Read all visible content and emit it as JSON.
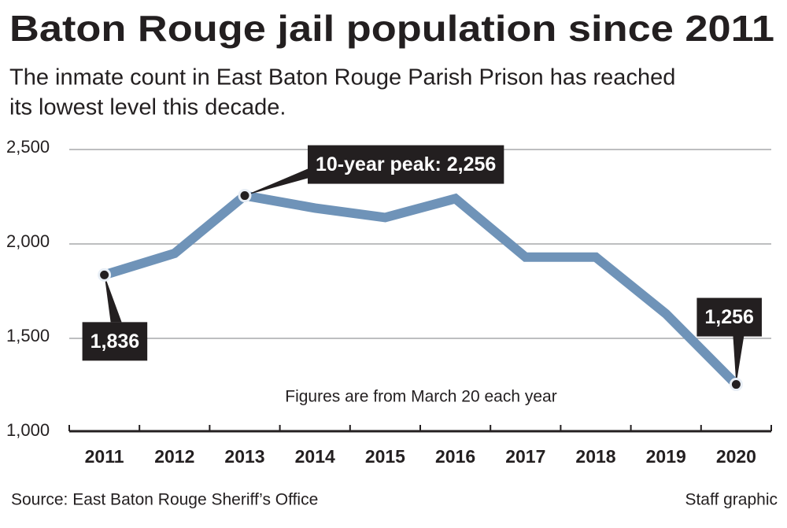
{
  "chart_data": {
    "type": "line",
    "title": "Baton Rouge jail population since 2011",
    "subtitle": [
      "The inmate count in East Baton Rouge Parish Prison has reached",
      "its lowest level this decade."
    ],
    "categories": [
      "2011",
      "2012",
      "2013",
      "2014",
      "2015",
      "2016",
      "2017",
      "2018",
      "2019",
      "2020"
    ],
    "values": [
      1836,
      1950,
      2256,
      2190,
      2140,
      2240,
      1930,
      1930,
      1630,
      1256
    ],
    "value_labels": [
      "1,836",
      null,
      "10-year peak: 2,256",
      null,
      null,
      null,
      null,
      null,
      null,
      "1,256"
    ],
    "color": "#6f93b8",
    "ylim": [
      1000,
      2500
    ],
    "yticks": [
      {
        "value": 1000,
        "label": "1,000"
      },
      {
        "value": 1500,
        "label": "1,500"
      },
      {
        "value": 2000,
        "label": "2,000"
      },
      {
        "value": 2500,
        "label": "2,500"
      }
    ],
    "grid": true,
    "annotation": "Figures are from March 20 each year",
    "source": "Source: East Baton Rouge Sheriff’s Office",
    "credit": "Staff graphic"
  }
}
